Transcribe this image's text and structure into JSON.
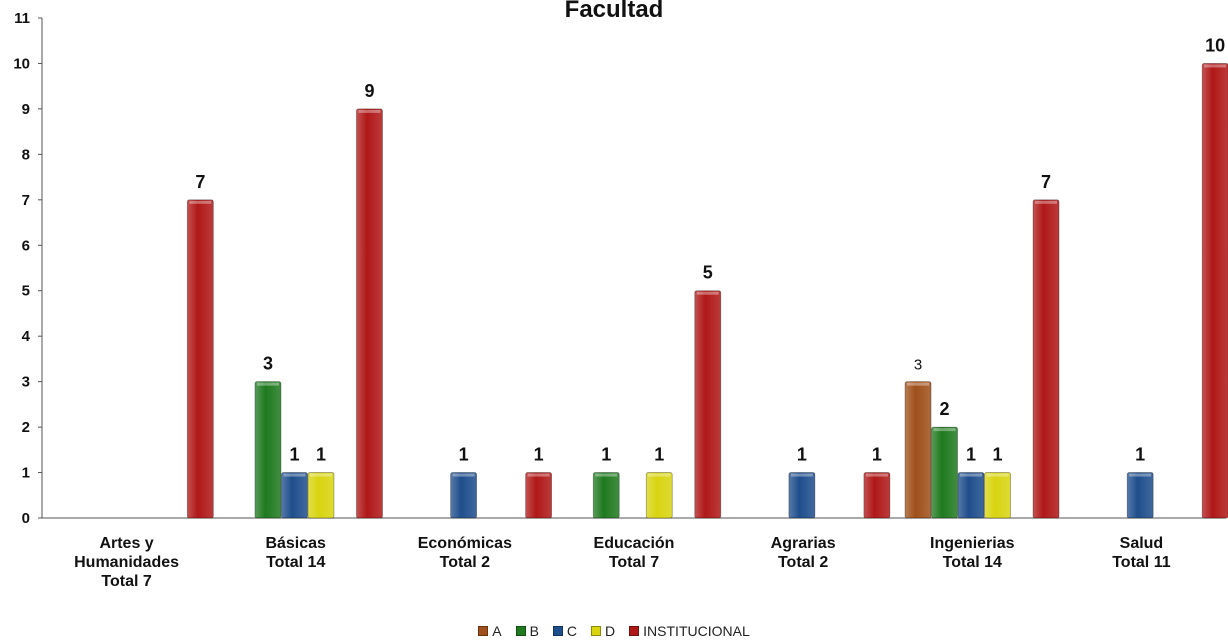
{
  "chart_data": {
    "type": "bar",
    "title": "Facultad",
    "categories": [
      [
        "Artes y",
        "Humanidades",
        "Total 7"
      ],
      [
        "Básicas",
        "Total 14"
      ],
      [
        "Económicas",
        "Total 2"
      ],
      [
        "Educación",
        "Total 7"
      ],
      [
        "Agrarias",
        "Total 2"
      ],
      [
        "Ingenierias",
        "Total 14"
      ],
      [
        "Salud",
        "Total 11"
      ]
    ],
    "series": [
      {
        "name": "A",
        "color": "#a0501a",
        "values": [
          null,
          null,
          null,
          null,
          null,
          3,
          null
        ]
      },
      {
        "name": "B",
        "color": "#1f7a1f",
        "values": [
          null,
          3,
          null,
          1,
          null,
          2,
          null
        ]
      },
      {
        "name": "C",
        "color": "#1f4e8c",
        "values": [
          null,
          1,
          1,
          null,
          1,
          1,
          1
        ]
      },
      {
        "name": "D",
        "color": "#d8d410",
        "values": [
          null,
          1,
          null,
          1,
          null,
          1,
          null
        ]
      },
      {
        "name": "INSTITUCIONAL",
        "color": "#b01818",
        "values": [
          7,
          9,
          1,
          5,
          1,
          7,
          10
        ]
      }
    ],
    "ylim": [
      0,
      11
    ],
    "yticks": [
      "0",
      "1",
      "2",
      "3",
      "4",
      "5",
      "6",
      "7",
      "8",
      "9",
      "10",
      "11"
    ],
    "legend_position": "bottom",
    "grid": false
  }
}
